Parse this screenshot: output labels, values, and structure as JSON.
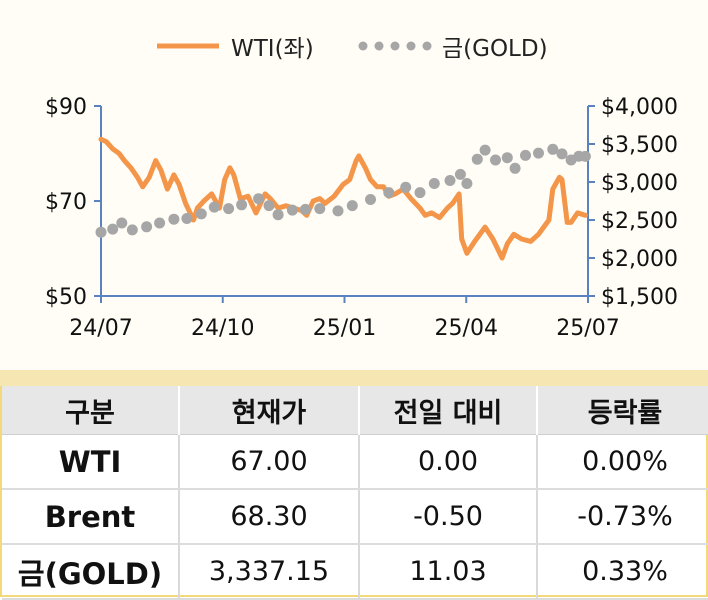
{
  "colors": {
    "wti": "#f4964a",
    "gold": "#a6a6a6",
    "axis": "#5b82c0",
    "header_bg": "#e7e7e7",
    "band": "#f6e7b2",
    "frame": "#f3d97a"
  },
  "chart_data": {
    "type": "line",
    "title": "",
    "legend_position": "top",
    "x_tick_labels": [
      "24/07",
      "24/10",
      "25/01",
      "25/04",
      "25/07"
    ],
    "y_left": {
      "ylim": [
        50,
        90
      ],
      "ticks": [
        50,
        70,
        90
      ],
      "tick_labels": [
        "$50",
        "$70",
        "$90"
      ]
    },
    "y_right": {
      "ylim": [
        1500,
        4000
      ],
      "ticks": [
        1500,
        2000,
        2500,
        3000,
        3500,
        4000
      ],
      "tick_labels": [
        "$1,500",
        "$2,000",
        "$2,500",
        "$3,000",
        "$3,500",
        "$4,000"
      ]
    },
    "grid": false,
    "series": [
      {
        "name": "WTI(좌)",
        "axis": "left",
        "style": "solid",
        "points": [
          [
            "2024-07-01",
            83
          ],
          [
            "2024-07-05",
            82.5
          ],
          [
            "2024-07-10",
            81
          ],
          [
            "2024-07-15",
            80
          ],
          [
            "2024-07-19",
            78.5
          ],
          [
            "2024-07-24",
            77
          ],
          [
            "2024-07-29",
            75
          ],
          [
            "2024-08-02",
            73
          ],
          [
            "2024-08-07",
            75
          ],
          [
            "2024-08-12",
            78.5
          ],
          [
            "2024-08-16",
            76.5
          ],
          [
            "2024-08-21",
            72.5
          ],
          [
            "2024-08-26",
            75.5
          ],
          [
            "2024-08-30",
            73.5
          ],
          [
            "2024-09-04",
            69.5
          ],
          [
            "2024-09-10",
            66
          ],
          [
            "2024-09-13",
            68.5
          ],
          [
            "2024-09-18",
            70
          ],
          [
            "2024-09-24",
            71.5
          ],
          [
            "2024-09-30",
            68.5
          ],
          [
            "2024-10-04",
            74.5
          ],
          [
            "2024-10-08",
            77
          ],
          [
            "2024-10-11",
            75.5
          ],
          [
            "2024-10-16",
            70.5
          ],
          [
            "2024-10-22",
            71
          ],
          [
            "2024-10-28",
            67.5
          ],
          [
            "2024-11-04",
            71.5
          ],
          [
            "2024-11-08",
            70.5
          ],
          [
            "2024-11-14",
            68.5
          ],
          [
            "2024-11-20",
            69
          ],
          [
            "2024-11-26",
            68.5
          ],
          [
            "2024-12-02",
            68
          ],
          [
            "2024-12-06",
            67
          ],
          [
            "2024-12-11",
            70
          ],
          [
            "2024-12-16",
            70.5
          ],
          [
            "2024-12-20",
            69.5
          ],
          [
            "2024-12-27",
            71
          ],
          [
            "2025-01-03",
            73.5
          ],
          [
            "2025-01-08",
            74.5
          ],
          [
            "2025-01-13",
            78.5
          ],
          [
            "2025-01-15",
            79.5
          ],
          [
            "2025-01-20",
            77
          ],
          [
            "2025-01-24",
            74.5
          ],
          [
            "2025-01-29",
            73
          ],
          [
            "2025-02-03",
            73
          ],
          [
            "2025-02-07",
            71
          ],
          [
            "2025-02-12",
            71.5
          ],
          [
            "2025-02-18",
            72.5
          ],
          [
            "2025-02-24",
            70.5
          ],
          [
            "2025-03-03",
            68.5
          ],
          [
            "2025-03-07",
            67
          ],
          [
            "2025-03-12",
            67.5
          ],
          [
            "2025-03-18",
            66.5
          ],
          [
            "2025-03-24",
            68.5
          ],
          [
            "2025-03-28",
            69.5
          ],
          [
            "2025-04-02",
            71.5
          ],
          [
            "2025-04-04",
            62
          ],
          [
            "2025-04-08",
            59
          ],
          [
            "2025-04-14",
            61.5
          ],
          [
            "2025-04-22",
            64.5
          ],
          [
            "2025-04-28",
            62
          ],
          [
            "2025-05-05",
            58
          ],
          [
            "2025-05-09",
            61
          ],
          [
            "2025-05-14",
            63
          ],
          [
            "2025-05-20",
            62
          ],
          [
            "2025-05-27",
            61.5
          ],
          [
            "2025-06-02",
            63
          ],
          [
            "2025-06-06",
            64.5
          ],
          [
            "2025-06-10",
            66
          ],
          [
            "2025-06-13",
            72.5
          ],
          [
            "2025-06-18",
            75
          ],
          [
            "2025-06-20",
            74.5
          ],
          [
            "2025-06-24",
            65.5
          ],
          [
            "2025-06-27",
            65.5
          ],
          [
            "2025-07-02",
            67.5
          ],
          [
            "2025-07-08",
            67
          ]
        ]
      },
      {
        "name": "금(GOLD)",
        "axis": "right",
        "style": "dotted",
        "points": [
          [
            "2024-07-01",
            2340
          ],
          [
            "2024-07-10",
            2380
          ],
          [
            "2024-07-17",
            2460
          ],
          [
            "2024-07-25",
            2370
          ],
          [
            "2024-08-05",
            2410
          ],
          [
            "2024-08-15",
            2460
          ],
          [
            "2024-08-26",
            2510
          ],
          [
            "2024-09-05",
            2520
          ],
          [
            "2024-09-16",
            2580
          ],
          [
            "2024-09-26",
            2670
          ],
          [
            "2024-10-07",
            2650
          ],
          [
            "2024-10-17",
            2700
          ],
          [
            "2024-10-30",
            2780
          ],
          [
            "2024-11-07",
            2690
          ],
          [
            "2024-11-14",
            2570
          ],
          [
            "2024-11-25",
            2630
          ],
          [
            "2024-12-05",
            2640
          ],
          [
            "2024-12-16",
            2650
          ],
          [
            "2024-12-30",
            2620
          ],
          [
            "2025-01-10",
            2690
          ],
          [
            "2025-01-24",
            2770
          ],
          [
            "2025-02-07",
            2860
          ],
          [
            "2025-02-20",
            2930
          ],
          [
            "2025-03-03",
            2860
          ],
          [
            "2025-03-14",
            2980
          ],
          [
            "2025-03-26",
            3020
          ],
          [
            "2025-04-03",
            3100
          ],
          [
            "2025-04-08",
            2980
          ],
          [
            "2025-04-16",
            3300
          ],
          [
            "2025-04-22",
            3420
          ],
          [
            "2025-04-30",
            3290
          ],
          [
            "2025-05-09",
            3320
          ],
          [
            "2025-05-15",
            3180
          ],
          [
            "2025-05-23",
            3350
          ],
          [
            "2025-06-02",
            3380
          ],
          [
            "2025-06-13",
            3430
          ],
          [
            "2025-06-20",
            3370
          ],
          [
            "2025-06-27",
            3290
          ],
          [
            "2025-07-03",
            3340
          ],
          [
            "2025-07-08",
            3337
          ]
        ]
      }
    ]
  },
  "legend": {
    "wti_label": "WTI(좌)",
    "gold_label": "금(GOLD)"
  },
  "table": {
    "headers": [
      "구분",
      "현재가",
      "전일 대비",
      "등락률"
    ],
    "rows": [
      [
        "WTI",
        "67.00",
        "0.00",
        "0.00%"
      ],
      [
        "Brent",
        "68.30",
        "-0.50",
        "-0.73%"
      ],
      [
        "금(GOLD)",
        "3,337.15",
        "11.03",
        "0.33%"
      ]
    ]
  }
}
